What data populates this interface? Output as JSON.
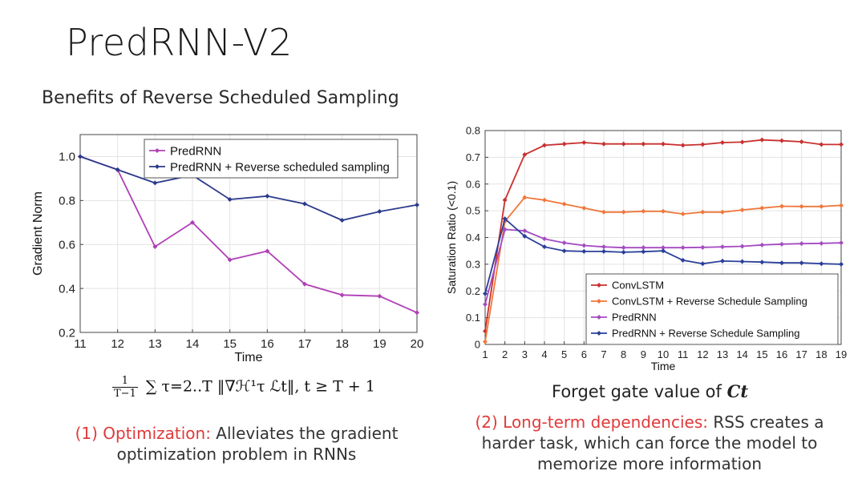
{
  "slide": {
    "title": "PredRNN-V2",
    "subtitle": "Benefits of Reverse Scheduled Sampling",
    "formula_prefix": "∑",
    "formula_frac_num": "1",
    "formula_frac_den": "T−1",
    "formula_body": "τ=2..T ‖∇ℋ¹τ ℒt‖, t ≥ T + 1",
    "right_caption": "Forget gate value of",
    "right_caption_symbol": "Ct",
    "note_left_highlight": "(1) Optimization:",
    "note_left_text": " Alleviates the gradient optimization problem in RNNs",
    "note_right_highlight": "(2) Long-term dependencies:",
    "note_right_text": " RSS creates a harder task, which can force the model to memorize more information"
  },
  "chart_data": [
    {
      "type": "line",
      "title": "",
      "xlabel": "Time",
      "ylabel": "Gradient Norm",
      "x": [
        11,
        12,
        13,
        14,
        15,
        16,
        17,
        18,
        19,
        20
      ],
      "xlim": [
        11,
        20
      ],
      "ylim": [
        0.2,
        1.1
      ],
      "yticks": [
        0.2,
        0.4,
        0.6,
        0.8,
        1.0
      ],
      "ytick_labels": [
        "0.2",
        "0.4",
        "0.6",
        "0.8",
        "1.0"
      ],
      "legend_position": "top-right",
      "grid": true,
      "series": [
        {
          "name": "PredRNN",
          "color": "#b03fb5",
          "values": [
            1.0,
            0.94,
            0.59,
            0.7,
            0.53,
            0.57,
            0.42,
            0.37,
            0.365,
            0.29
          ]
        },
        {
          "name": "PredRNN + Reverse scheduled sampling",
          "color": "#2c3a8c",
          "values": [
            1.0,
            0.94,
            0.88,
            0.915,
            0.805,
            0.82,
            0.785,
            0.71,
            0.75,
            0.78
          ]
        }
      ]
    },
    {
      "type": "line",
      "title": "",
      "xlabel": "Time",
      "ylabel": "Saturation Ratio (<0.1)",
      "x": [
        1,
        2,
        3,
        4,
        5,
        6,
        7,
        8,
        9,
        10,
        11,
        12,
        13,
        14,
        15,
        16,
        17,
        18,
        19
      ],
      "xlim": [
        1,
        19
      ],
      "ylim": [
        0,
        0.8
      ],
      "yticks": [
        0,
        0.1,
        0.2,
        0.3,
        0.4,
        0.5,
        0.6,
        0.7,
        0.8
      ],
      "ytick_labels": [
        "0",
        "0.1",
        "0.2",
        "0.3",
        "0.4",
        "0.5",
        "0.6",
        "0.7",
        "0.8"
      ],
      "legend_position": "bottom-right",
      "grid": true,
      "series": [
        {
          "name": "ConvLSTM",
          "color": "#c8312f",
          "values": [
            0.05,
            0.54,
            0.71,
            0.745,
            0.75,
            0.755,
            0.75,
            0.75,
            0.75,
            0.75,
            0.745,
            0.748,
            0.755,
            0.757,
            0.765,
            0.762,
            0.758,
            0.748,
            0.748
          ]
        },
        {
          "name": "ConvLSTM + Reverse Schedule Sampling",
          "color": "#f0773a",
          "values": [
            0.01,
            0.46,
            0.55,
            0.54,
            0.525,
            0.51,
            0.495,
            0.495,
            0.498,
            0.498,
            0.488,
            0.495,
            0.495,
            0.503,
            0.51,
            0.517,
            0.516,
            0.516,
            0.52
          ]
        },
        {
          "name": "PredRNN",
          "color": "#a44bc1",
          "values": [
            0.15,
            0.43,
            0.425,
            0.395,
            0.38,
            0.37,
            0.365,
            0.362,
            0.362,
            0.362,
            0.362,
            0.363,
            0.365,
            0.367,
            0.372,
            0.375,
            0.377,
            0.378,
            0.38
          ]
        },
        {
          "name": "PredRNN + Reverse Schedule Sampling",
          "color": "#2a3f9a",
          "values": [
            0.19,
            0.47,
            0.405,
            0.365,
            0.35,
            0.348,
            0.348,
            0.345,
            0.347,
            0.35,
            0.315,
            0.302,
            0.312,
            0.31,
            0.308,
            0.305,
            0.305,
            0.302,
            0.3
          ]
        }
      ]
    }
  ]
}
